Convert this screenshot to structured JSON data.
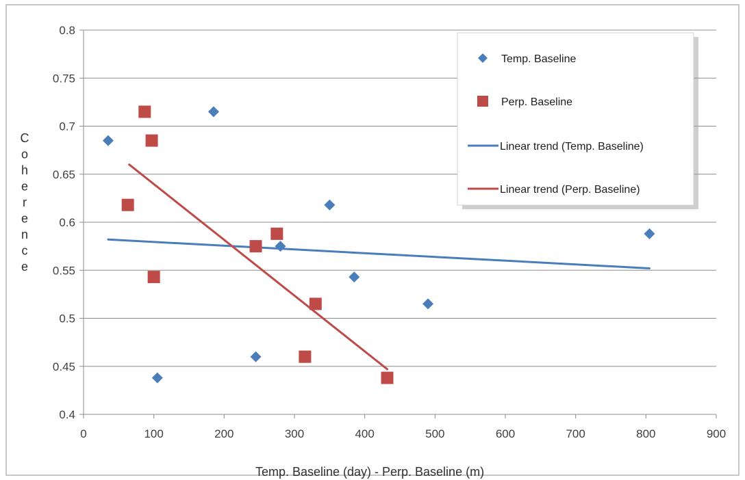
{
  "chart_data": {
    "type": "scatter",
    "xlabel": "Temp. Baseline (day) - Perp. Baseline (m)",
    "ylabel": "Coherence",
    "xlim": [
      0,
      900
    ],
    "ylim": [
      0.4,
      0.8
    ],
    "x_ticks": [
      "0",
      "100",
      "200",
      "300",
      "400",
      "500",
      "600",
      "700",
      "800",
      "900"
    ],
    "y_ticks": [
      "0.4",
      "0.45",
      "0.5",
      "0.55",
      "0.6",
      "0.65",
      "0.7",
      "0.75",
      "0.8"
    ],
    "grid": "horizontal",
    "legend_position": "top-right",
    "series": [
      {
        "name": "Temp. Baseline",
        "marker": "diamond",
        "color": "#4a7ebb",
        "points": [
          [
            35,
            0.685
          ],
          [
            105,
            0.438
          ],
          [
            185,
            0.715
          ],
          [
            245,
            0.46
          ],
          [
            280,
            0.575
          ],
          [
            350,
            0.618
          ],
          [
            385,
            0.543
          ],
          [
            490,
            0.515
          ],
          [
            805,
            0.588
          ]
        ]
      },
      {
        "name": "Perp. Baseline",
        "marker": "square",
        "color": "#be4b48",
        "points": [
          [
            63,
            0.618
          ],
          [
            87,
            0.715
          ],
          [
            97,
            0.685
          ],
          [
            100,
            0.543
          ],
          [
            245,
            0.575
          ],
          [
            275,
            0.588
          ],
          [
            315,
            0.46
          ],
          [
            330,
            0.515
          ],
          [
            432,
            0.438
          ]
        ]
      },
      {
        "name": "Linear trend (Temp. Baseline)",
        "type": "line",
        "color": "#4a7ebb",
        "points": [
          [
            35,
            0.582
          ],
          [
            805,
            0.552
          ]
        ]
      },
      {
        "name": "Linear trend (Perp. Baseline)",
        "type": "line",
        "color": "#be4b48",
        "points": [
          [
            65,
            0.66
          ],
          [
            432,
            0.447
          ]
        ]
      }
    ]
  }
}
